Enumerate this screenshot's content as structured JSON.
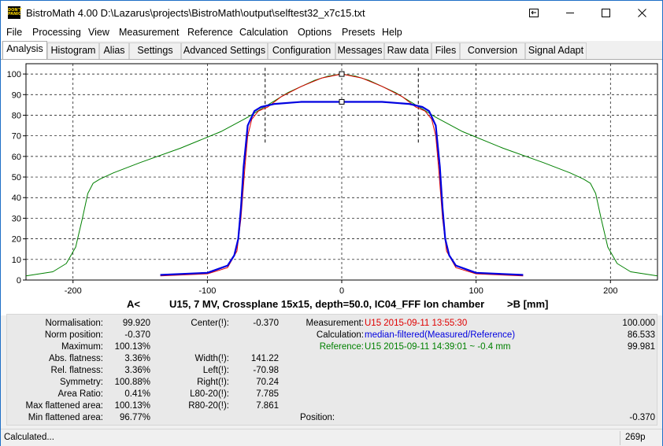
{
  "window": {
    "title": "BistroMath 4.00   D:\\Lazarus\\projects\\BistroMath\\output\\selftest32_x7c15.txt",
    "icon": {
      "name": "dont-panic-icon",
      "text": "DON'T PANIC"
    }
  },
  "menu": [
    "File",
    "Processing",
    "View",
    "Measurement",
    "Reference",
    "Calculation",
    "Options",
    "Presets",
    "Help"
  ],
  "tabs": [
    {
      "label": "Analysis",
      "active": true
    },
    {
      "label": "Histogram"
    },
    {
      "label": "Alias"
    },
    {
      "label": "Settings"
    },
    {
      "label": "Advanced Settings"
    },
    {
      "label": "Configuration"
    },
    {
      "label": "Messages"
    },
    {
      "label": "Raw data"
    },
    {
      "label": "Files"
    },
    {
      "label": "Conversion"
    },
    {
      "label": "Signal Adapt"
    }
  ],
  "chart_data": {
    "type": "line",
    "xlabel_left": "A<",
    "title": "U15, 7 MV, Crossplane 15x15, depth=50.0, IC04_FFF Ion chamber",
    "xlabel_right": ">B  [mm]",
    "xlim": [
      -235,
      235
    ],
    "ylim": [
      0,
      105
    ],
    "x_ticks": [
      -200,
      -100,
      0,
      100,
      200
    ],
    "y_ticks": [
      0,
      10,
      20,
      30,
      40,
      50,
      60,
      70,
      80,
      90,
      100
    ],
    "grid": true,
    "markers_vertical_dashed": [
      -57,
      57
    ],
    "square_markers": [
      {
        "x": 0,
        "y": 100
      },
      {
        "x": 0,
        "y": 86.5
      }
    ],
    "series": [
      {
        "color": "#008000",
        "x": [
          -235,
          -215,
          -205,
          -198,
          -193,
          -189,
          -185,
          -180,
          -170,
          -150,
          -120,
          -90,
          -70,
          -60,
          -40,
          -20,
          -10,
          0,
          10,
          20,
          40,
          60,
          70,
          90,
          120,
          150,
          170,
          180,
          185,
          189,
          193,
          198,
          205,
          215,
          235
        ],
        "y": [
          2,
          4,
          8,
          16,
          30,
          42,
          47,
          49,
          52,
          57,
          64,
          72,
          79,
          83,
          91,
          97,
          99,
          100,
          99,
          97,
          91,
          83,
          79,
          72,
          64,
          57,
          52,
          49,
          47,
          42,
          30,
          16,
          8,
          4,
          2
        ]
      },
      {
        "color": "#e00000",
        "x": [
          -135,
          -100,
          -85,
          -78,
          -75,
          -72,
          -70,
          -67,
          -62,
          -55,
          -45,
          -30,
          -15,
          0,
          15,
          30,
          45,
          55,
          62,
          67,
          70,
          72,
          75,
          78,
          85,
          100,
          135
        ],
        "y": [
          2,
          3,
          6,
          14,
          30,
          55,
          70,
          78,
          82,
          84,
          89,
          94,
          98,
          100,
          98,
          94,
          89,
          84,
          82,
          78,
          70,
          55,
          30,
          14,
          6,
          3,
          2
        ]
      },
      {
        "color": "#0000e0",
        "x": [
          -135,
          -100,
          -85,
          -80,
          -77,
          -75,
          -73,
          -70,
          -65,
          -60,
          -50,
          -30,
          0,
          30,
          50,
          60,
          65,
          70,
          73,
          75,
          77,
          80,
          85,
          100,
          135
        ],
        "y": [
          2.5,
          3.5,
          7,
          12,
          20,
          35,
          55,
          75,
          82,
          84,
          85.5,
          86.5,
          86.5,
          86.5,
          85.5,
          84,
          82,
          75,
          55,
          35,
          20,
          12,
          7,
          3.5,
          2.5
        ]
      }
    ]
  },
  "info": {
    "col1": [
      {
        "label": "Normalisation:",
        "value": "99.920"
      },
      {
        "label": "Norm position:",
        "value": "-0.370"
      },
      {
        "label": "Maximum:",
        "value": "100.13%"
      },
      {
        "label": "Abs. flatness:",
        "value": "3.36%"
      },
      {
        "label": "Rel. flatness:",
        "value": "3.36%"
      },
      {
        "label": "Symmetry:",
        "value": "100.88%"
      },
      {
        "label": "Area Ratio:",
        "value": "0.41%"
      },
      {
        "label": "Max flattened area:",
        "value": "100.13%"
      },
      {
        "label": "Min flattened area:",
        "value": "96.77%"
      }
    ],
    "col2": [
      {
        "label": "Center(!):",
        "value": "-0.370"
      },
      {
        "label": "",
        "value": ""
      },
      {
        "label": "",
        "value": ""
      },
      {
        "label": "Width(!):",
        "value": "141.22"
      },
      {
        "label": "Left(!):",
        "value": "-70.98"
      },
      {
        "label": "Right(!):",
        "value": "70.24"
      },
      {
        "label": "L80-20(!):",
        "value": "7.785"
      },
      {
        "label": "R80-20(!):",
        "value": "7.861"
      }
    ],
    "measurement": {
      "label": "Measurement:",
      "text": "U15 2015-09-11 13:55:30",
      "value": "100.000"
    },
    "calculation": {
      "label": "Calculation:",
      "text": "median-filtered(Measured/Reference)",
      "value": "86.533"
    },
    "reference": {
      "label": "Reference:",
      "text": "U15 2015-09-11 14:39:01 ~ -0.4 mm",
      "value": "99.981"
    },
    "position": {
      "label": "Position:",
      "value": "-0.370"
    }
  },
  "status": {
    "text": "Calculated...",
    "right": "269p"
  }
}
